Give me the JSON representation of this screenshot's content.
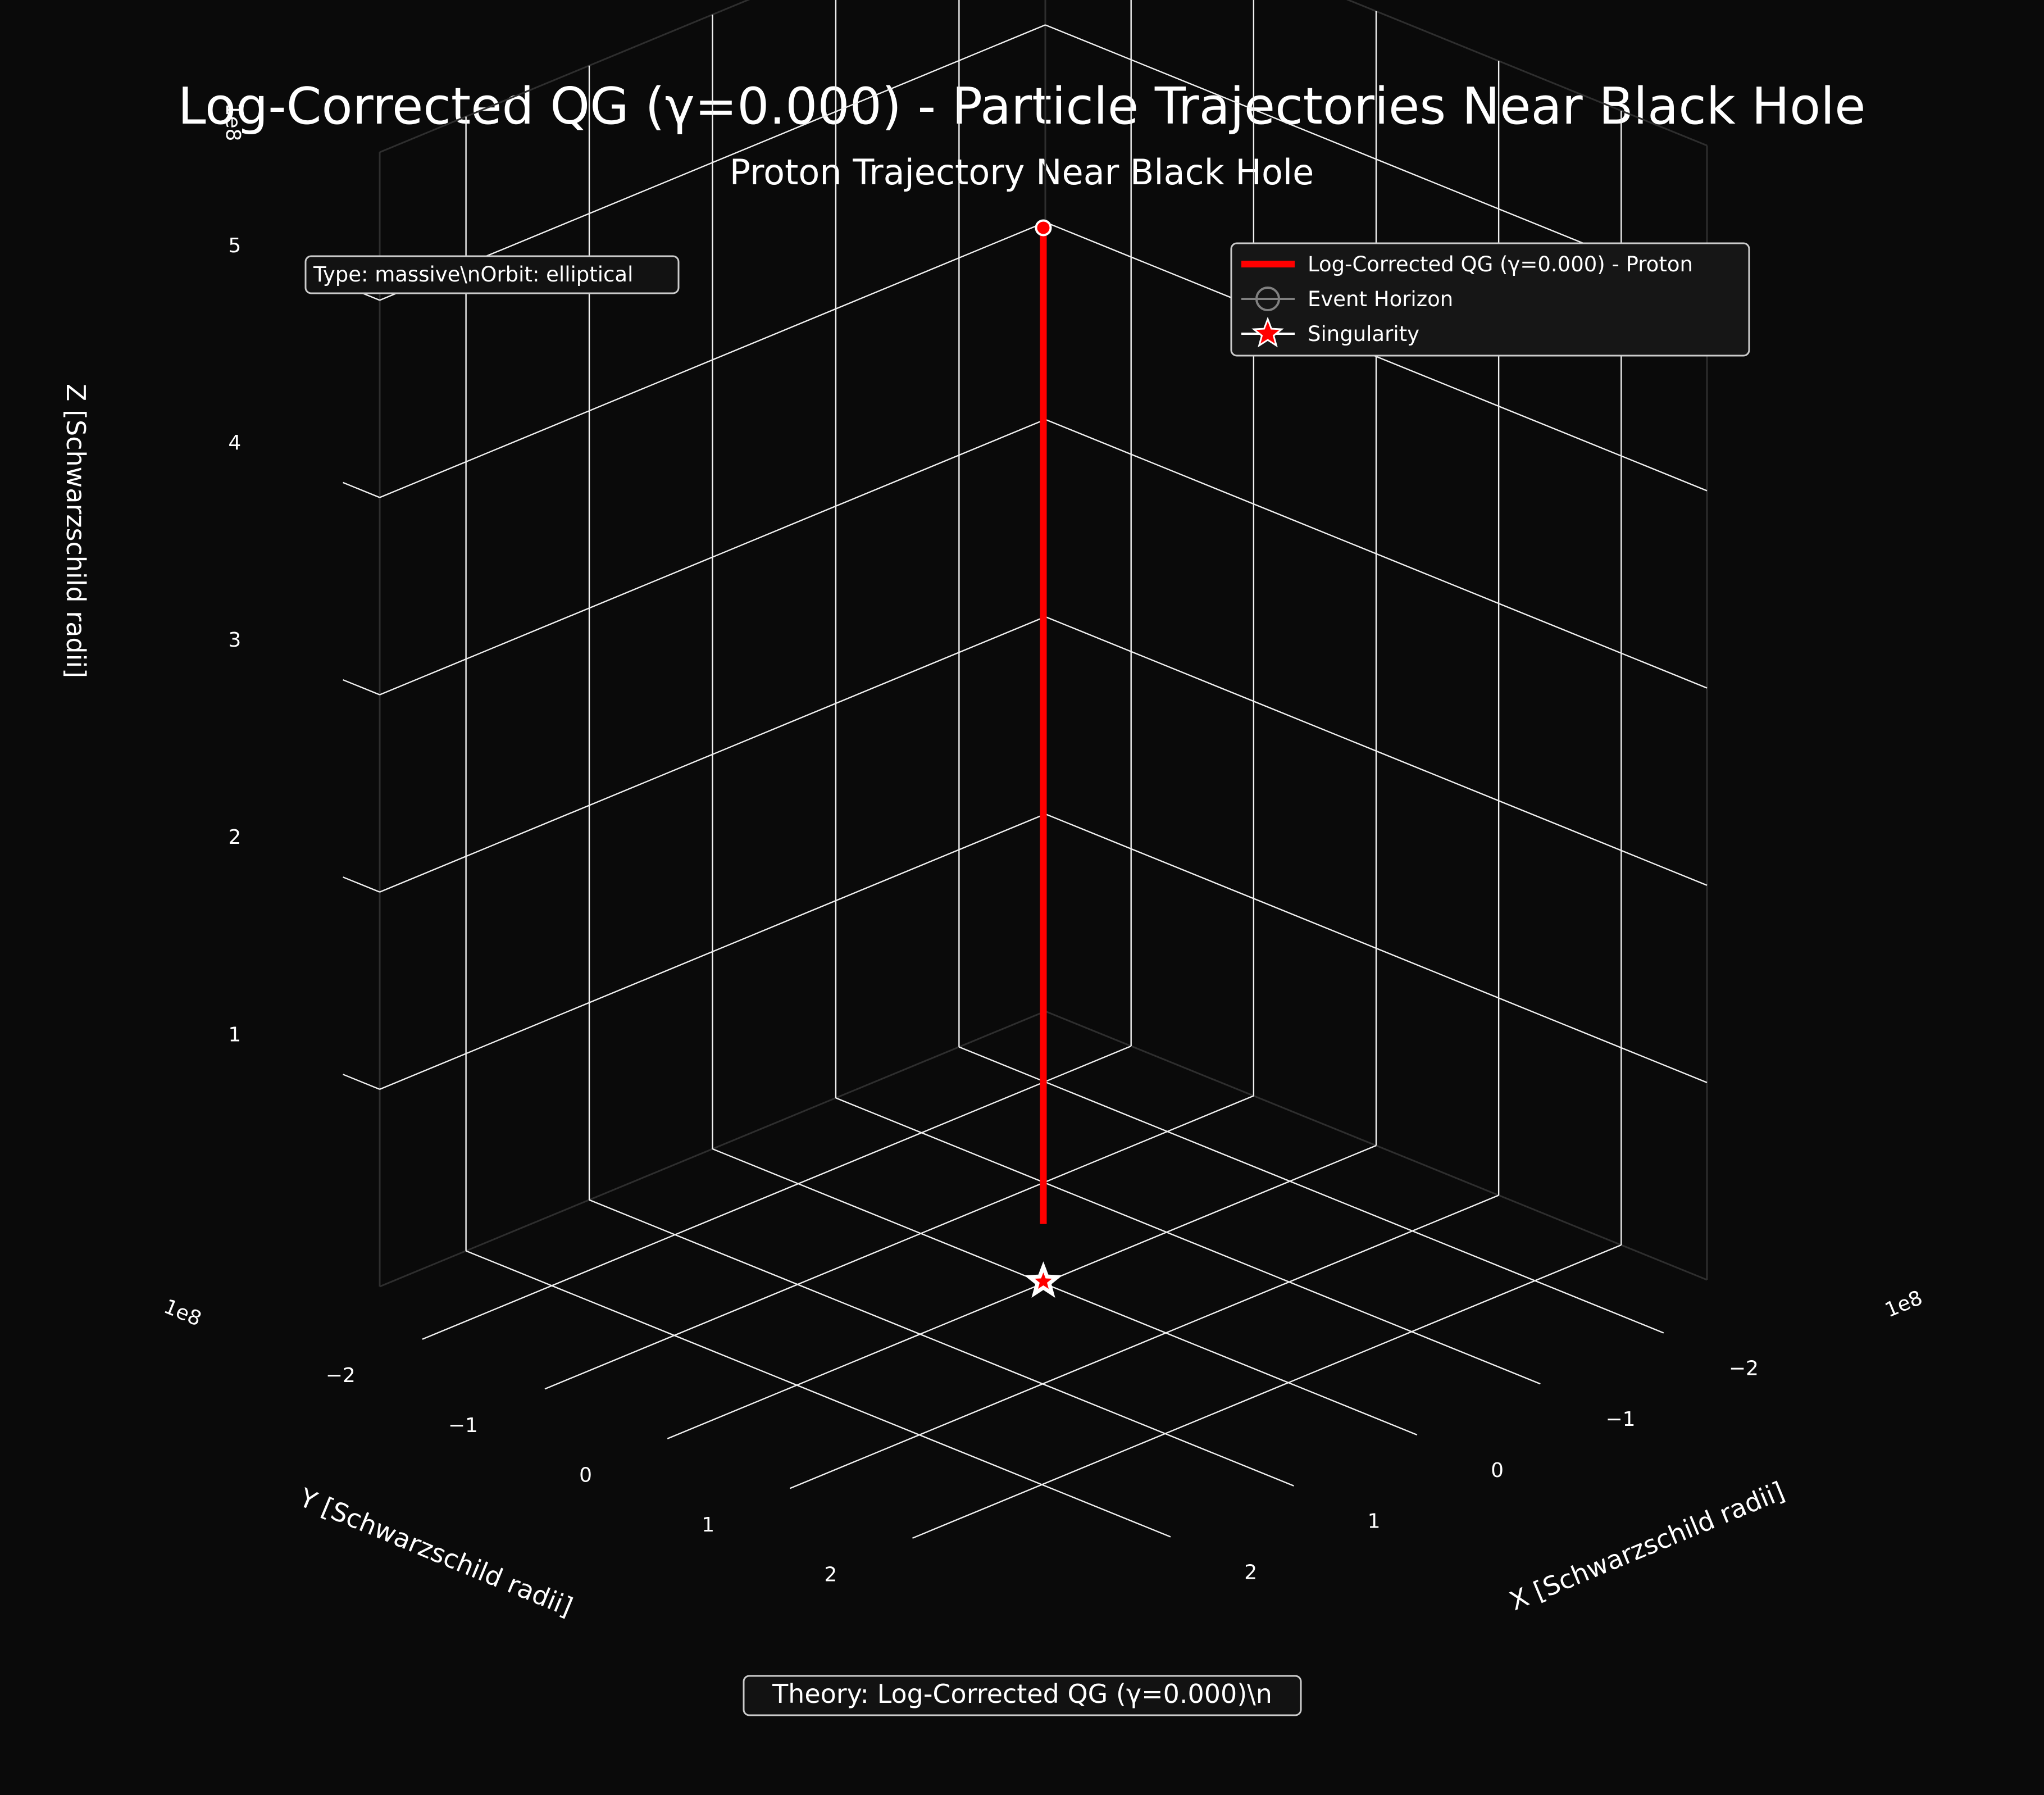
{
  "figure": {
    "title": "Log-Corrected QG (γ=0.000) - Particle Trajectories Near Black Hole",
    "subtitle": "Proton Trajectory Near Black Hole",
    "info_box": "Type: massive\\nOrbit: elliptical",
    "footer_box": "Theory: Log-Corrected QG (γ=0.000)\\n",
    "background": "#0a0a0a"
  },
  "legend": {
    "entries": [
      {
        "label": "Log-Corrected QG (γ=0.000) - Proton",
        "color": "#ff0000",
        "marker": "line"
      },
      {
        "label": "Event Horizon",
        "color": "#808080",
        "marker": "circle"
      },
      {
        "label": "Singularity",
        "color": "#ff0000",
        "marker": "star"
      }
    ]
  },
  "chart_data": {
    "type": "line3d",
    "xlabel": "X [Schwarzschild radii]",
    "ylabel": "Y [Schwarzschild radii]",
    "zlabel": "Z [Schwarzschild radii]",
    "x_offset": "1e8",
    "y_offset": "1e8",
    "z_offset": "1e8",
    "xlim": [
      -2.7,
      2.7
    ],
    "ylim": [
      -2.7,
      2.7
    ],
    "zlim": [
      0.0,
      5.75
    ],
    "x_ticks": [
      "−2",
      "−1",
      "0",
      "1",
      "2"
    ],
    "y_ticks": [
      "−2",
      "−1",
      "0",
      "1",
      "2"
    ],
    "z_ticks": [
      "1",
      "2",
      "3",
      "4",
      "5"
    ],
    "x_tick_values": [
      -2,
      -1,
      0,
      1,
      2
    ],
    "y_tick_values": [
      -2,
      -1,
      0,
      1,
      2
    ],
    "z_tick_values": [
      1,
      2,
      3,
      4,
      5
    ],
    "grid": true,
    "legend_position": "top-right",
    "series": [
      {
        "name": "Log-Corrected QG (γ=0.000) - Proton",
        "color": "#ff0000",
        "x": [
          0,
          0
        ],
        "y": [
          0,
          0
        ],
        "z": [
          0.3,
          5.35
        ]
      }
    ],
    "markers": {
      "start": {
        "x": 0,
        "y": 0,
        "z": 5.35,
        "color": "#ff0000"
      },
      "singularity": {
        "x": 0,
        "y": 0,
        "z": 0,
        "color": "#ff0000"
      }
    }
  }
}
